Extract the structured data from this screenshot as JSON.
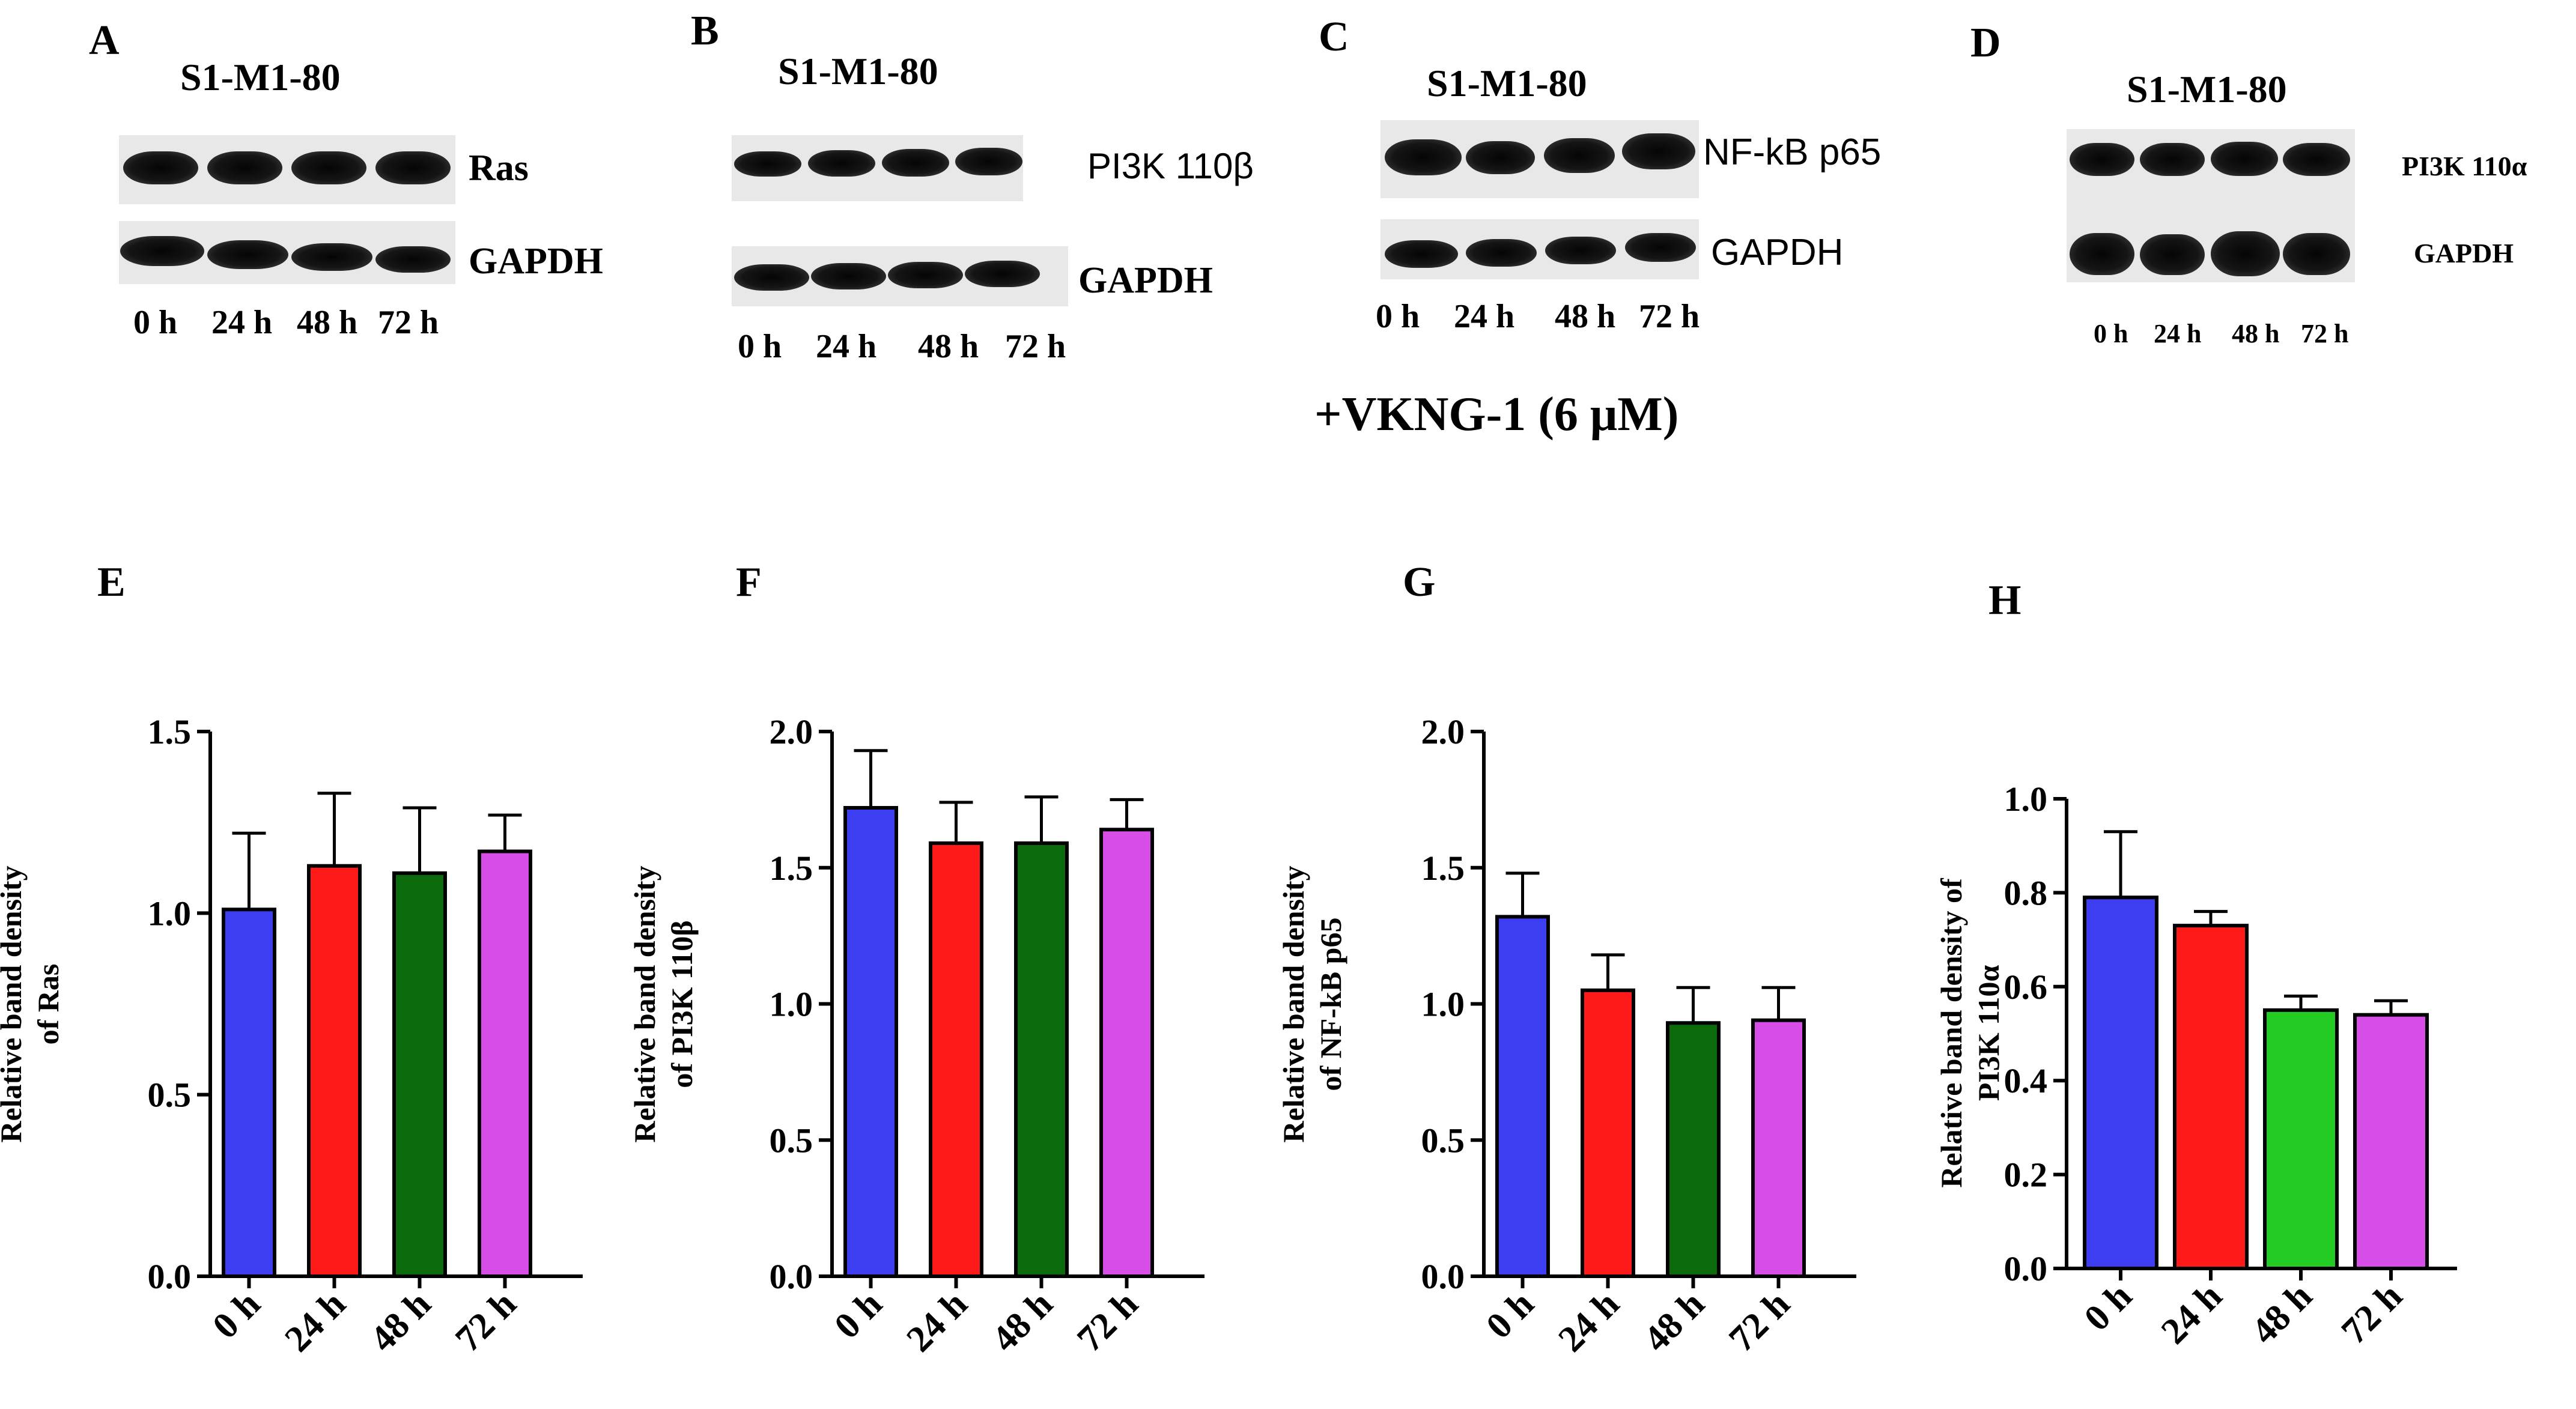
{
  "blots": [
    {
      "letter": "A",
      "title": "S1-M1-80",
      "rows": [
        "Ras",
        "GAPDH"
      ],
      "lanes": [
        "0 h",
        "24 h",
        "48 h",
        "72 h"
      ]
    },
    {
      "letter": "B",
      "title": "S1-M1-80",
      "rows": [
        "PI3K 110β",
        "GAPDH"
      ],
      "lanes": [
        "0 h",
        "24 h",
        "48 h",
        "72 h"
      ]
    },
    {
      "letter": "C",
      "title": "S1-M1-80",
      "rows": [
        "NF-kB p65",
        "GAPDH"
      ],
      "lanes": [
        "0 h",
        "24 h",
        "48 h",
        "72 h"
      ]
    },
    {
      "letter": "D",
      "title": "S1-M1-80",
      "rows": [
        "PI3K 110α",
        "GAPDH"
      ],
      "lanes": [
        "0 h",
        "24 h",
        "48 h",
        "72 h"
      ]
    }
  ],
  "treatment": "+VKNG-1 (6 μM)",
  "colors": {
    "blue": "#3d3df2",
    "red": "#ff1a1a",
    "darkgreen": "#0b6b0b",
    "brightgreen": "#22cc22",
    "magenta": "#d64de8"
  },
  "chart_data": [
    {
      "type": "bar",
      "letter": "E",
      "categories": [
        "0 h",
        "24 h",
        "48 h",
        "72 h"
      ],
      "values": [
        1.01,
        1.13,
        1.11,
        1.17
      ],
      "errors": [
        0.21,
        0.2,
        0.18,
        0.1
      ],
      "ylabel": [
        "Relative band density",
        "of Ras"
      ],
      "ylim": [
        0,
        1.5
      ],
      "yticks": [
        "0.0",
        "0.5",
        "1.0",
        "1.5"
      ],
      "colors": [
        "#3d3df2",
        "#ff1a1a",
        "#0b6b0b",
        "#d64de8"
      ]
    },
    {
      "type": "bar",
      "letter": "F",
      "categories": [
        "0 h",
        "24 h",
        "48 h",
        "72 h"
      ],
      "values": [
        1.72,
        1.59,
        1.59,
        1.64
      ],
      "errors": [
        0.21,
        0.15,
        0.17,
        0.11
      ],
      "ylabel": [
        "Relative band density",
        "of PI3K 110β"
      ],
      "ylim": [
        0,
        2.0
      ],
      "yticks": [
        "0.0",
        "0.5",
        "1.0",
        "1.5",
        "2.0"
      ],
      "colors": [
        "#3d3df2",
        "#ff1a1a",
        "#0b6b0b",
        "#d64de8"
      ]
    },
    {
      "type": "bar",
      "letter": "G",
      "categories": [
        "0 h",
        "24 h",
        "48 h",
        "72 h"
      ],
      "values": [
        1.32,
        1.05,
        0.93,
        0.94
      ],
      "errors": [
        0.16,
        0.13,
        0.13,
        0.12
      ],
      "ylabel": [
        "Relative band density",
        "of NF-kB p65"
      ],
      "ylim": [
        0,
        2.0
      ],
      "yticks": [
        "0.0",
        "0.5",
        "1.0",
        "1.5",
        "2.0"
      ],
      "colors": [
        "#3d3df2",
        "#ff1a1a",
        "#0b6b0b",
        "#d64de8"
      ]
    },
    {
      "type": "bar",
      "letter": "H",
      "categories": [
        "0 h",
        "24 h",
        "48 h",
        "72 h"
      ],
      "values": [
        0.79,
        0.73,
        0.55,
        0.54
      ],
      "errors": [
        0.14,
        0.03,
        0.03,
        0.03
      ],
      "ylabel": [
        "Relative band density of",
        "PI3K 110α"
      ],
      "ylim": [
        0,
        1.0
      ],
      "yticks": [
        "0.0",
        "0.2",
        "0.4",
        "0.6",
        "0.8",
        "1.0"
      ],
      "colors": [
        "#3d3df2",
        "#ff1a1a",
        "#22cc22",
        "#d64de8"
      ]
    }
  ]
}
